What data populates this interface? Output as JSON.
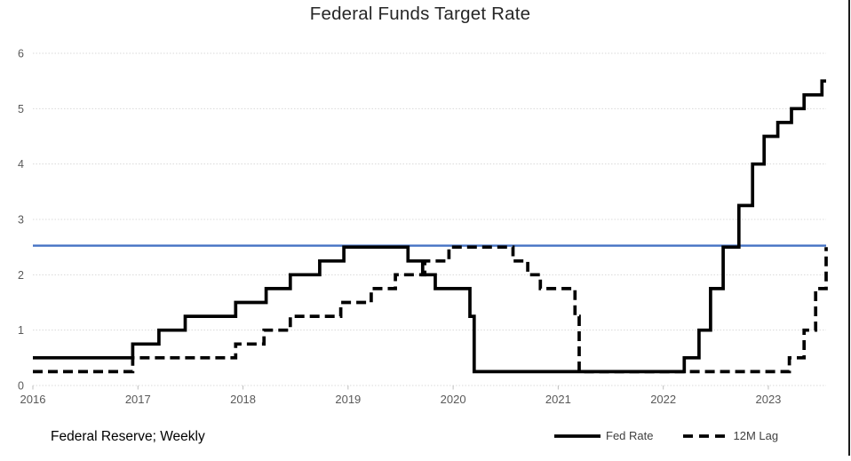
{
  "chart_data": {
    "type": "line",
    "title": "Federal Funds Target Rate",
    "source_note": "Federal Reserve; Weekly",
    "xlabel": "",
    "ylabel": "",
    "xlim": [
      2016,
      2023.55
    ],
    "ylim": [
      0,
      6
    ],
    "x_ticks": [
      "2016",
      "2017",
      "2018",
      "2019",
      "2020",
      "2021",
      "2022",
      "2023"
    ],
    "x_tick_values": [
      2016,
      2017,
      2018,
      2019,
      2020,
      2021,
      2022,
      2023
    ],
    "y_ticks": [
      "0",
      "1",
      "2",
      "3",
      "4",
      "5",
      "6"
    ],
    "y_tick_values": [
      0,
      1,
      2,
      3,
      4,
      5,
      6
    ],
    "grid": "horizontal-dotted",
    "legend_position": "bottom-right",
    "reference_line": {
      "value": 2.5,
      "color": "#4472C4"
    },
    "series": [
      {
        "name": "Fed Rate",
        "line_style": "solid",
        "color": "#000000",
        "step": true,
        "points": [
          [
            2016.0,
            0.5
          ],
          [
            2016.95,
            0.75
          ],
          [
            2017.2,
            1.0
          ],
          [
            2017.45,
            1.25
          ],
          [
            2017.93,
            1.5
          ],
          [
            2018.22,
            1.75
          ],
          [
            2018.45,
            2.0
          ],
          [
            2018.73,
            2.25
          ],
          [
            2018.96,
            2.5
          ],
          [
            2019.57,
            2.25
          ],
          [
            2019.71,
            2.0
          ],
          [
            2019.83,
            1.75
          ],
          [
            2020.16,
            1.25
          ],
          [
            2020.2,
            0.25
          ],
          [
            2022.2,
            0.5
          ],
          [
            2022.34,
            1.0
          ],
          [
            2022.45,
            1.75
          ],
          [
            2022.57,
            2.5
          ],
          [
            2022.72,
            3.25
          ],
          [
            2022.85,
            4.0
          ],
          [
            2022.96,
            4.5
          ],
          [
            2023.09,
            4.75
          ],
          [
            2023.22,
            5.0
          ],
          [
            2023.34,
            5.25
          ],
          [
            2023.51,
            5.5
          ]
        ]
      },
      {
        "name": "12M Lag",
        "line_style": "dashed",
        "color": "#000000",
        "step": true,
        "points": [
          [
            2016.0,
            0.25
          ],
          [
            2016.95,
            0.5
          ],
          [
            2017.93,
            0.75
          ],
          [
            2018.2,
            1.0
          ],
          [
            2018.45,
            1.25
          ],
          [
            2018.93,
            1.5
          ],
          [
            2019.22,
            1.75
          ],
          [
            2019.45,
            2.0
          ],
          [
            2019.73,
            2.25
          ],
          [
            2019.96,
            2.5
          ],
          [
            2020.57,
            2.25
          ],
          [
            2020.71,
            2.0
          ],
          [
            2020.83,
            1.75
          ],
          [
            2021.16,
            1.25
          ],
          [
            2021.2,
            0.25
          ],
          [
            2023.2,
            0.5
          ],
          [
            2023.34,
            1.0
          ],
          [
            2023.45,
            1.75
          ],
          [
            2023.55,
            2.5
          ]
        ]
      }
    ],
    "colors": {
      "grid": "#d9d9d9",
      "axis_text": "#595959",
      "title_text": "#262626",
      "tick_mark": "#bfbfbf",
      "reference_blue": "#4472C4",
      "series_black": "#000000"
    }
  }
}
